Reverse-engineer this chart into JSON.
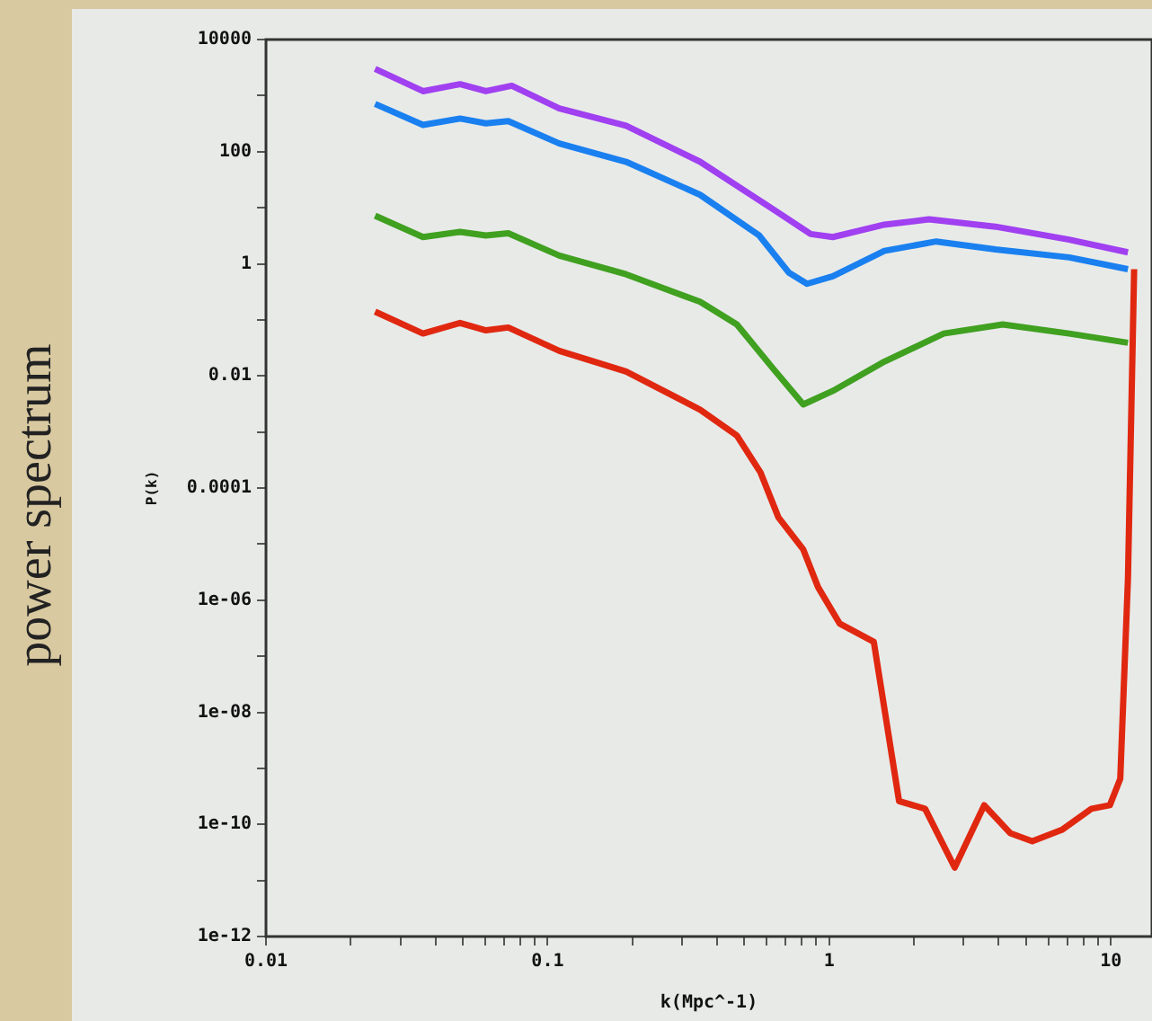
{
  "chart_data": {
    "type": "line",
    "xlabel": "k(Mpc^-1)",
    "ylabel": "P(k)",
    "annotations": [
      "power spectrum"
    ],
    "log": "xy",
    "grid": false,
    "legend": false,
    "marker": "none",
    "line_style": "solid",
    "xlim": [
      0.01,
      14
    ],
    "xticks": [
      0.01,
      {
        "value": 0.02,
        "label": null
      },
      {
        "value": 0.03,
        "label": null
      },
      {
        "value": 0.04,
        "label": null
      },
      {
        "value": 0.05,
        "label": null
      },
      {
        "value": 0.06,
        "label": null
      },
      {
        "value": 0.07,
        "label": null
      },
      {
        "value": 0.08,
        "label": null
      },
      {
        "value": 0.09,
        "label": null
      },
      0.1,
      {
        "value": 0.2,
        "label": null
      },
      {
        "value": 0.3,
        "label": null
      },
      {
        "value": 0.4,
        "label": null
      },
      {
        "value": 0.5,
        "label": null
      },
      {
        "value": 0.6,
        "label": null
      },
      {
        "value": 0.7,
        "label": null
      },
      {
        "value": 0.8,
        "label": null
      },
      {
        "value": 0.9,
        "label": null
      },
      1,
      {
        "value": 2,
        "label": null
      },
      {
        "value": 3,
        "label": null
      },
      {
        "value": 4,
        "label": null
      },
      {
        "value": 5,
        "label": null
      },
      {
        "value": 6,
        "label": null
      },
      {
        "value": 7,
        "label": null
      },
      {
        "value": 8,
        "label": null
      },
      {
        "value": 9,
        "label": null
      },
      10
    ],
    "ylim": [
      1e-12,
      10000
    ],
    "yticks": [
      10000,
      {
        "value": 1000,
        "label": null
      },
      100,
      {
        "value": 10,
        "label": null
      },
      1,
      {
        "value": 0.1,
        "label": null
      },
      0.01,
      {
        "value": 0.001,
        "label": null
      },
      0.0001,
      {
        "value": 1e-05,
        "label": null
      },
      {
        "value": 1e-06,
        "label": "1e-06"
      },
      {
        "value": 1e-07,
        "label": null
      },
      {
        "value": 1e-08,
        "label": "1e-08"
      },
      {
        "value": 1e-09,
        "label": null
      },
      {
        "value": 1e-10,
        "label": "1e-10"
      },
      {
        "value": 1e-11,
        "label": null
      },
      {
        "value": 1e-12,
        "label": "1e-12"
      }
    ],
    "series": [
      {
        "color": "#a040f0",
        "x": [
          0.0244,
          0.0361,
          0.0489,
          0.0604,
          0.0746,
          0.11,
          0.19,
          0.348,
          0.636,
          0.859,
          1.03,
          1.57,
          2.26,
          3.89,
          7.11,
          11.5
        ],
        "values": [
          3000,
          1200,
          1600,
          1200,
          1500,
          590,
          290,
          66,
          9.2,
          3.4,
          3,
          5,
          6.2,
          4.6,
          2.7,
          1.6
        ]
      },
      {
        "color": "#1a80f0",
        "x": [
          0.0244,
          0.0361,
          0.0489,
          0.0604,
          0.0725,
          0.11,
          0.19,
          0.348,
          0.564,
          0.718,
          0.834,
          1.03,
          1.57,
          2.4,
          3.89,
          7.11,
          11.5
        ],
        "values": [
          710,
          300,
          390,
          320,
          350,
          140,
          66,
          17,
          3.2,
          0.7,
          0.44,
          0.6,
          1.7,
          2.5,
          1.8,
          1.3,
          0.8
        ]
      },
      {
        "color": "#40a020",
        "x": [
          0.0244,
          0.0361,
          0.0489,
          0.0604,
          0.0725,
          0.11,
          0.19,
          0.348,
          0.47,
          0.636,
          0.809,
          1.03,
          1.57,
          2.55,
          4.13,
          7.11,
          11.5
        ],
        "values": [
          7.2,
          3,
          3.7,
          3.2,
          3.5,
          1.4,
          0.65,
          0.21,
          0.083,
          0.013,
          0.0031,
          0.0054,
          0.018,
          0.057,
          0.083,
          0.057,
          0.039
        ]
      },
      {
        "color": "#e02810",
        "x": [
          0.0244,
          0.0361,
          0.0489,
          0.0604,
          0.0725,
          0.11,
          0.19,
          0.348,
          0.47,
          0.57,
          0.66,
          0.809,
          0.913,
          1.09,
          1.44,
          1.77,
          2.19,
          2.79,
          3.55,
          4.39,
          5.26,
          6.7,
          8.53,
          9.92,
          10.8,
          11.5,
          12.1
        ],
        "values": [
          0.14,
          0.057,
          0.088,
          0.065,
          0.073,
          0.028,
          0.012,
          0.0025,
          0.00086,
          0.00019,
          3e-05,
          8e-06,
          1.7e-06,
          3.8e-07,
          1.8e-07,
          2.6e-10,
          1.9e-10,
          1.7e-11,
          2.2e-10,
          7e-11,
          5e-11,
          8e-11,
          1.9e-10,
          2.2e-10,
          6.5e-10,
          2.4e-06,
          0.8
        ]
      }
    ]
  }
}
